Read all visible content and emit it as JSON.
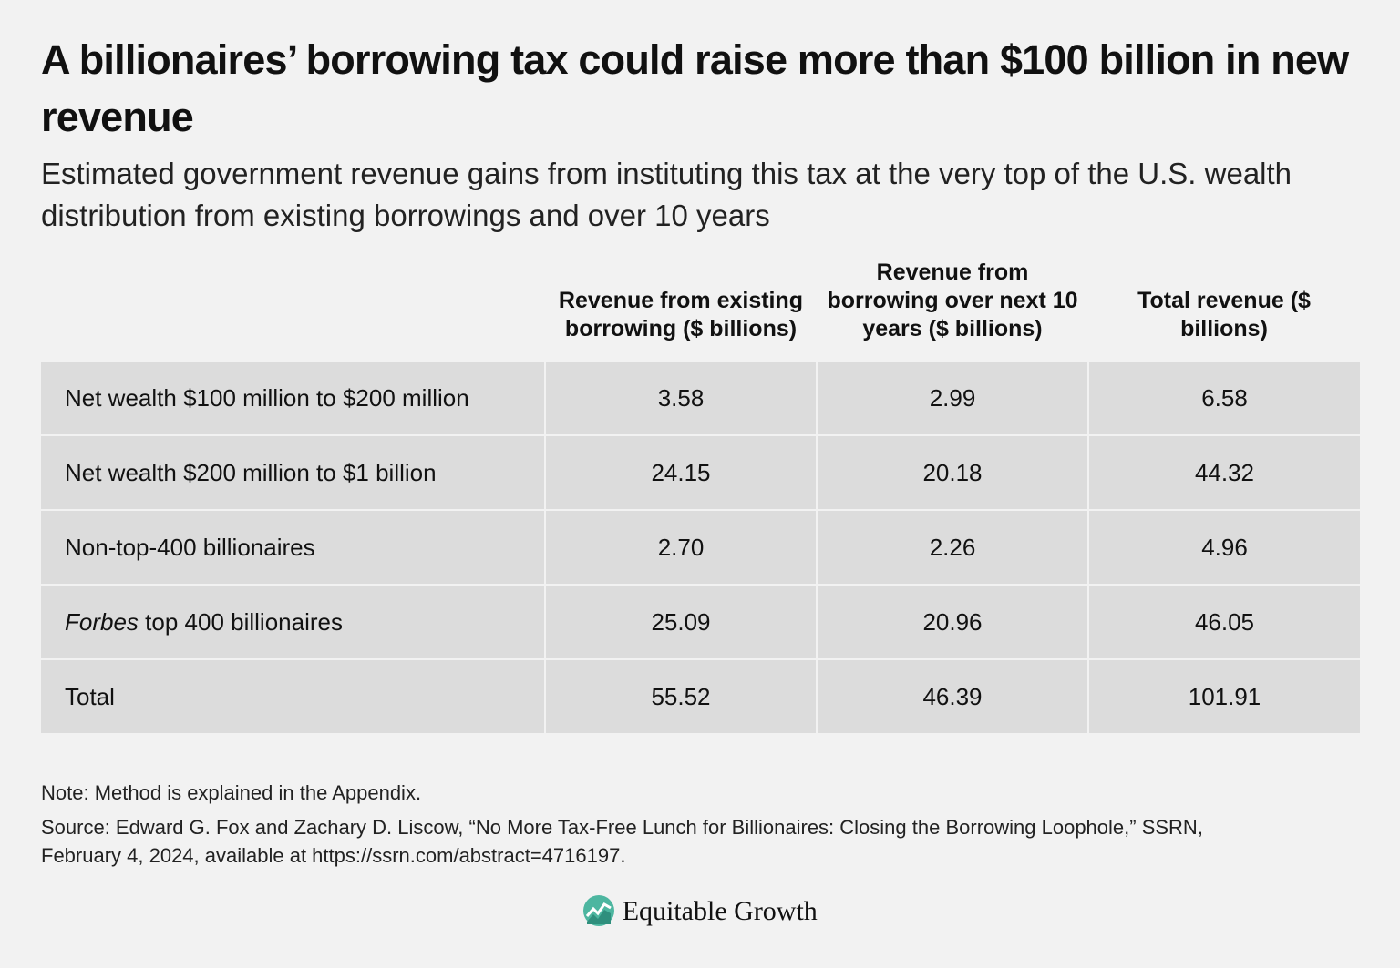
{
  "header": {
    "title": "A billionaires’ borrowing tax could raise more than $100 billion in new revenue",
    "subtitle": "Estimated government revenue gains from instituting this tax at the very top of the U.S. wealth distribution from existing borrowings and over 10 years"
  },
  "table": {
    "columns": [
      "Revenue from existing borrowing ($ billions)",
      "Revenue from borrowing over next 10 years ($ billions)",
      "Total revenue ($ billions)"
    ],
    "rows": [
      {
        "label": "Net wealth $100 million to $200 million",
        "cells": [
          "3.58",
          "2.99",
          "6.58"
        ]
      },
      {
        "label": "Net wealth $200 million to $1 billion",
        "cells": [
          "24.15",
          "20.18",
          "44.32"
        ]
      },
      {
        "label": "Non-top-400 billionaires",
        "cells": [
          "2.70",
          "2.26",
          "4.96"
        ]
      },
      {
        "label_italic": "Forbes",
        "label": "top 400 billionaires",
        "cells": [
          "25.09",
          "20.96",
          "46.05"
        ]
      },
      {
        "label": "Total",
        "cells": [
          "55.52",
          "46.39",
          "101.91"
        ]
      }
    ]
  },
  "footer": {
    "note": "Note: Method is explained in the Appendix.",
    "source": "Source: Edward G. Fox and Zachary D. Liscow, “No More Tax-Free Lunch for Billionaires: Closing the Borrowing Loophole,” SSRN, February 4, 2024, available at https://ssrn.com/abstract=4716197.",
    "brand": "Equitable Growth"
  }
}
